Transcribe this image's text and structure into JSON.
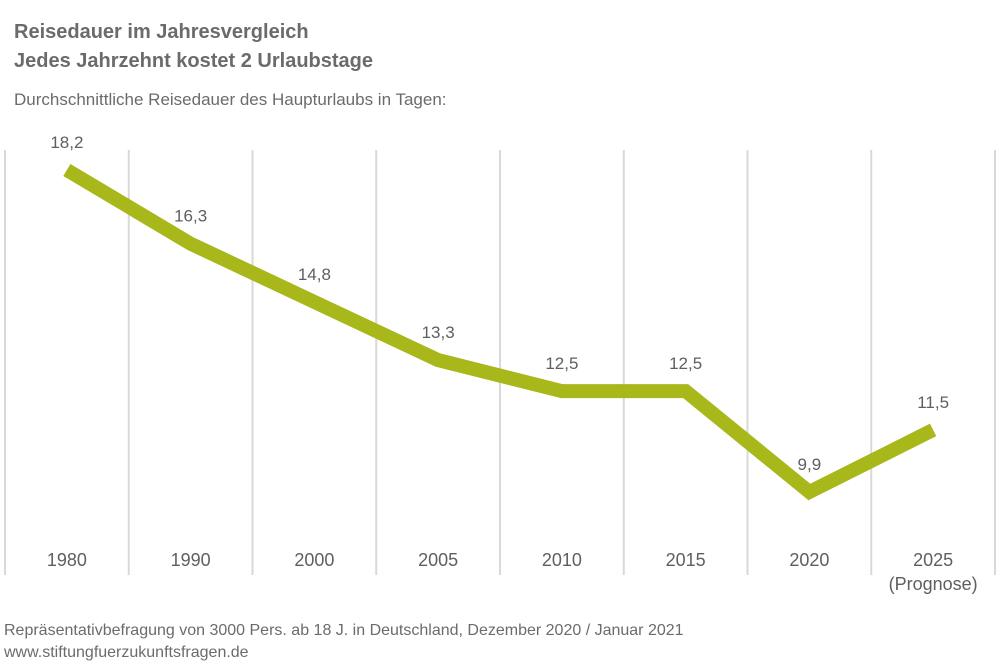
{
  "header": {
    "title_line1": "Reisedauer im Jahresvergleich",
    "title_line2": "Jedes Jahrzehnt kostet 2 Urlaubstage",
    "subtitle": "Durchschnittliche Reisedauer des Haupturlaubs in Tagen:"
  },
  "footer": {
    "source": "Repräsentativbefragung von 3000 Pers. ab 18 J. in Deutschland, Dezember 2020 / Januar 2021",
    "url": "www.stiftungfuerzukunftsfragen.de"
  },
  "colors": {
    "line": "#a8b71a",
    "grid": "#d9d9d9",
    "text": "#5f5f5f"
  },
  "chart_data": {
    "type": "line",
    "categories": [
      "1980",
      "1990",
      "2000",
      "2005",
      "2010",
      "2015",
      "2020",
      "2025"
    ],
    "category_sublabels": [
      "",
      "",
      "",
      "",
      "",
      "",
      "",
      "(Prognose)"
    ],
    "series": [
      {
        "values": [
          18.2,
          16.3,
          14.8,
          13.3,
          12.5,
          12.5,
          9.9,
          11.5
        ]
      }
    ],
    "data_labels": [
      "18,2",
      "16,3",
      "14,8",
      "13,3",
      "12,5",
      "12,5",
      "9,9",
      "11,5"
    ],
    "grid": "vertical",
    "legend": "none"
  }
}
